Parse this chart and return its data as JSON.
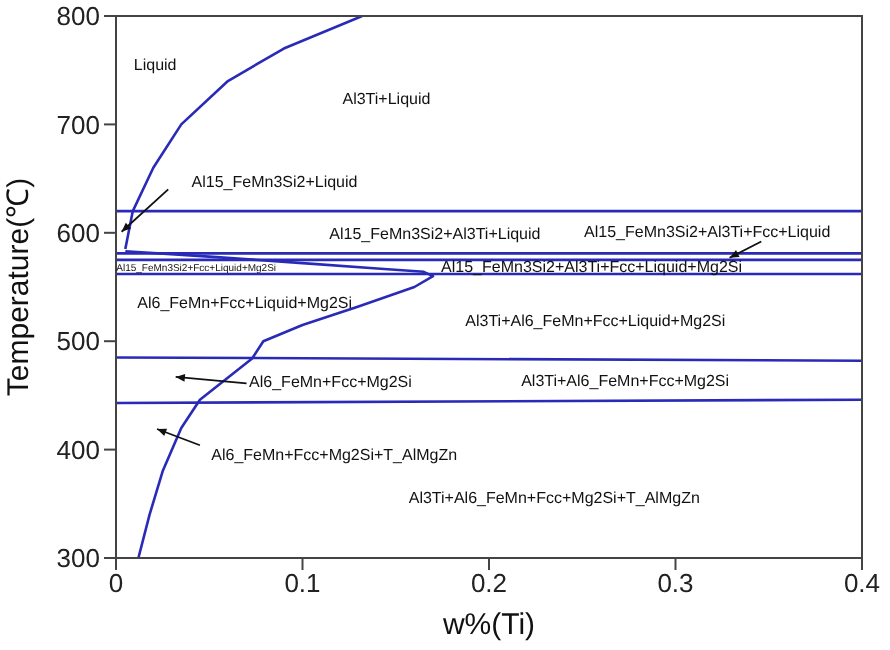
{
  "chart_data": {
    "type": "line",
    "xlabel": "w%(Ti)",
    "ylabel": "Temperature(℃)",
    "xlim": [
      0,
      0.4
    ],
    "ylim": [
      300,
      800
    ],
    "xticks": [
      0,
      0.1,
      0.2,
      0.3,
      0.4
    ],
    "yticks": [
      300,
      400,
      500,
      600,
      700,
      800
    ],
    "grid": false,
    "legend": false,
    "marker": "none",
    "line_style": "solid",
    "series": [
      {
        "color": "#2a2ab8",
        "x": [
          0.005,
          0.009,
          0.02,
          0.035,
          0.06,
          0.09,
          0.132
        ],
        "values": [
          585,
          620,
          660,
          700,
          740,
          770,
          800
        ]
      },
      {
        "color": "#2a2ab8",
        "x": [
          0,
          0.4
        ],
        "values": [
          620,
          620
        ]
      },
      {
        "color": "#2a2ab8",
        "x": [
          0,
          0.4
        ],
        "values": [
          581,
          581
        ]
      },
      {
        "color": "#2a2ab8",
        "x": [
          0,
          0.4
        ],
        "values": [
          575,
          575
        ]
      },
      {
        "color": "#2a2ab8",
        "x": [
          0,
          0.4
        ],
        "values": [
          562,
          562
        ]
      },
      {
        "color": "#2a2ab8",
        "x": [
          0.005,
          0.05,
          0.1,
          0.14,
          0.165,
          0.17,
          0.16,
          0.13,
          0.1,
          0.079,
          0.073,
          0.045,
          0.035,
          0.025,
          0.018,
          0.012
        ],
        "values": [
          583,
          578,
          572,
          567,
          564,
          560,
          550,
          532,
          515,
          500,
          484,
          446,
          420,
          380,
          340,
          300
        ]
      },
      {
        "color": "#2a2ab8",
        "x": [
          0,
          0.4
        ],
        "values": [
          485,
          482
        ]
      },
      {
        "color": "#2a2ab8",
        "x": [
          0,
          0.4
        ],
        "values": [
          443,
          446
        ]
      }
    ],
    "annotations": [
      "Liquid",
      "Al3Ti+Liquid",
      "Al15_FeMn3Si2+Liquid",
      "Al15_FeMn3Si2+Al3Ti+Liquid",
      "Al15_FeMn3Si2+Al3Ti+Fcc+Liquid",
      "Al15_FeMn3Si2+Fcc+Liquid+Mg2Si",
      "Al15_FeMn3Si2+Al3Ti+Fcc+Liquid+Mg2Si",
      "Al6_FeMn+Fcc+Liquid+Mg2Si",
      "Al3Ti+Al6_FeMn+Fcc+Liquid+Mg2Si",
      "Al6_FeMn+Fcc+Mg2Si",
      "Al3Ti+Al6_FeMn+Fcc+Mg2Si",
      "Al6_FeMn+Fcc+Mg2Si+T_AlMgZn",
      "Al3Ti+Al6_FeMn+Fcc+Mg2Si+T_AlMgZn"
    ]
  }
}
